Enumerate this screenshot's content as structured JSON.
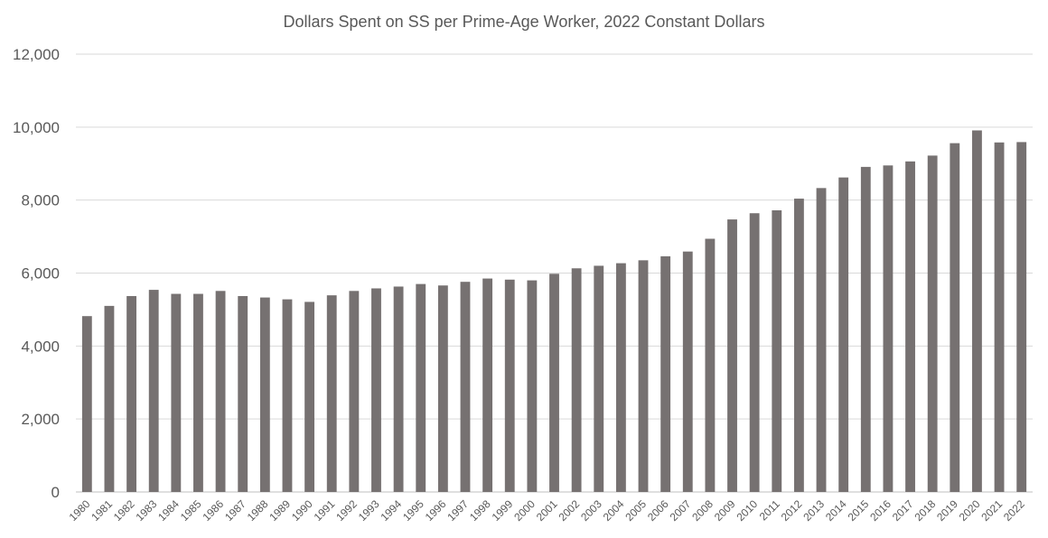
{
  "chart_data": {
    "type": "bar",
    "title": "Dollars Spent on SS per Prime-Age Worker, 2022 Constant Dollars",
    "xlabel": "",
    "ylabel": "",
    "ylim": [
      0,
      12000
    ],
    "yticks": [
      "0",
      "2,000",
      "4,000",
      "6,000",
      "8,000",
      "10,000",
      "12,000"
    ],
    "ytick_values": [
      0,
      2000,
      4000,
      6000,
      8000,
      10000,
      12000
    ],
    "grid": true,
    "legend": "none",
    "bar_color": "#767171",
    "categories": [
      "1980",
      "1981",
      "1982",
      "1983",
      "1984",
      "1985",
      "1986",
      "1987",
      "1988",
      "1989",
      "1990",
      "1991",
      "1992",
      "1993",
      "1994",
      "1995",
      "1996",
      "1997",
      "1998",
      "1999",
      "2000",
      "2001",
      "2002",
      "2003",
      "2004",
      "2005",
      "2006",
      "2007",
      "2008",
      "2009",
      "2010",
      "2011",
      "2012",
      "2013",
      "2014",
      "2015",
      "2016",
      "2017",
      "2018",
      "2019",
      "2020",
      "2021",
      "2022"
    ],
    "values": [
      4820,
      5100,
      5370,
      5540,
      5430,
      5430,
      5510,
      5370,
      5330,
      5280,
      5210,
      5390,
      5510,
      5580,
      5630,
      5700,
      5660,
      5760,
      5850,
      5820,
      5800,
      5980,
      6130,
      6200,
      6270,
      6350,
      6460,
      6590,
      6940,
      7470,
      7640,
      7720,
      8040,
      8330,
      8620,
      8910,
      8950,
      9060,
      9220,
      9560,
      9910,
      9580,
      9590
    ]
  }
}
